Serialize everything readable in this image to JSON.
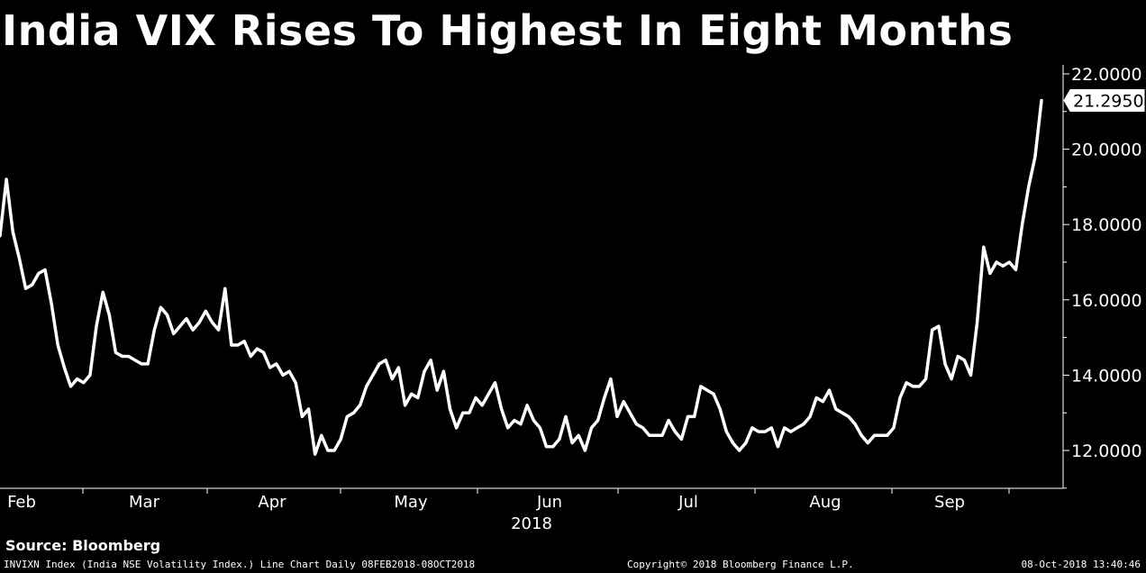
{
  "title": "India VIX Rises To Highest In Eight Months",
  "source": "Source: Bloomberg",
  "footer": {
    "description": "INVIXN Index (India NSE Volatility Index.) Line Chart  Daily 08FEB2018-08OCT2018",
    "copyright": "Copyright© 2018 Bloomberg Finance L.P.",
    "timestamp": "08-Oct-2018 13:40:46"
  },
  "colors": {
    "background": "#000000",
    "line": "#ffffff",
    "text": "#ffffff"
  },
  "chart_data": {
    "type": "line",
    "title": "India VIX Rises To Highest In Eight Months",
    "xlabel": "2018",
    "ylabel": "",
    "ylim": [
      10.8,
      22.2
    ],
    "yticks": [
      12,
      14,
      16,
      18,
      20,
      22
    ],
    "ytick_labels": [
      "12.0000",
      "14.0000",
      "16.0000",
      "18.0000",
      "20.0000",
      "22.0000"
    ],
    "xtick_labels": [
      "Feb",
      "Mar",
      "Apr",
      "May",
      "Jun",
      "Jul",
      "Aug",
      "Sep"
    ],
    "last_value_label": "21.2950",
    "grid": false,
    "series": [
      {
        "values": [
          17.7,
          19.2,
          17.8,
          17.1,
          16.3,
          16.4,
          16.7,
          16.8,
          15.9,
          14.8,
          14.2,
          13.7,
          13.9,
          13.8,
          14.0,
          15.3,
          16.2,
          15.6,
          14.6,
          14.5,
          14.5,
          14.4,
          14.3,
          14.3,
          15.2,
          15.8,
          15.6,
          15.1,
          15.3,
          15.5,
          15.2,
          15.4,
          15.7,
          15.4,
          15.2,
          16.3,
          14.8,
          14.8,
          14.9,
          14.5,
          14.7,
          14.6,
          14.2,
          14.3,
          14.0,
          14.1,
          13.8,
          12.9,
          13.1,
          11.9,
          12.4,
          12.0,
          12.0,
          12.3,
          12.9,
          13.0,
          13.2,
          13.7,
          14.0,
          14.3,
          14.4,
          13.9,
          14.2,
          13.2,
          13.5,
          13.4,
          14.1,
          14.4,
          13.6,
          14.1,
          13.1,
          12.6,
          13.0,
          13.0,
          13.4,
          13.2,
          13.5,
          13.8,
          13.1,
          12.6,
          12.8,
          12.7,
          13.2,
          12.8,
          12.6,
          12.1,
          12.1,
          12.3,
          12.9,
          12.2,
          12.4,
          12.0,
          12.6,
          12.8,
          13.4,
          13.9,
          12.9,
          13.3,
          13.0,
          12.7,
          12.6,
          12.4,
          12.4,
          12.4,
          12.8,
          12.5,
          12.3,
          12.9,
          12.9,
          13.7,
          13.6,
          13.5,
          13.1,
          12.5,
          12.2,
          12.0,
          12.2,
          12.6,
          12.5,
          12.5,
          12.6,
          12.1,
          12.6,
          12.5,
          12.6,
          12.7,
          12.9,
          13.4,
          13.3,
          13.6,
          13.1,
          13.0,
          12.9,
          12.7,
          12.4,
          12.2,
          12.4,
          12.4,
          12.4,
          12.6,
          13.4,
          13.8,
          13.7,
          13.7,
          13.9,
          15.2,
          15.3,
          14.3,
          13.9,
          14.5,
          14.4,
          14.0,
          15.4,
          17.4,
          16.7,
          17.0,
          16.9,
          17.0,
          16.8,
          18.0,
          19.0,
          19.8,
          21.295
        ]
      }
    ]
  }
}
